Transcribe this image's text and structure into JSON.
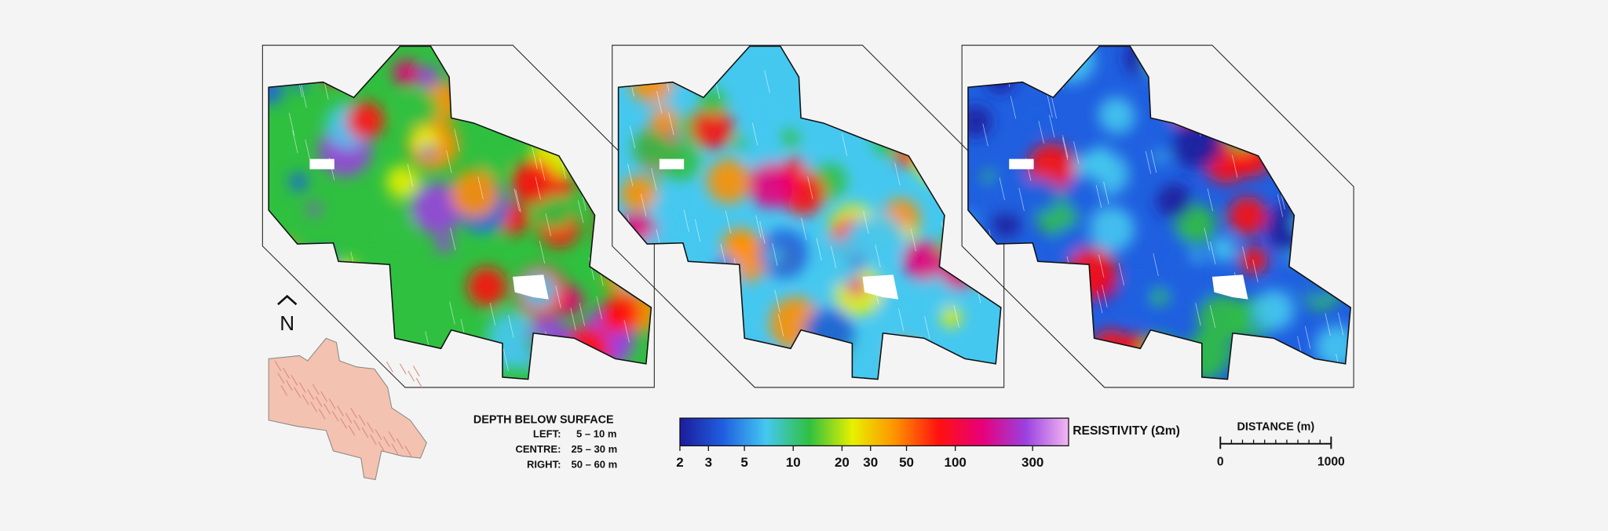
{
  "maps": {
    "panels": [
      "left",
      "centre",
      "right"
    ]
  },
  "north_arrow": {
    "label": "N"
  },
  "depth_legend": {
    "title": "DEPTH BELOW SURFACE",
    "rows": [
      [
        "LEFT:",
        "5 – 10 m"
      ],
      [
        "CENTRE:",
        "25 – 30 m"
      ],
      [
        "RIGHT:",
        "50 – 60 m"
      ]
    ]
  },
  "colorbar": {
    "title": "RESISTIVITY (Ωm)",
    "log": true,
    "lim": [
      2,
      500
    ],
    "ticks": [
      2,
      3,
      5,
      10,
      20,
      30,
      50,
      100,
      300
    ],
    "colors": [
      "#1c1c9c",
      "#1f5fe0",
      "#45c8f0",
      "#30c040",
      "#e8f000",
      "#ff9000",
      "#ff1010",
      "#e8007a",
      "#9a40e0",
      "#f2b8f2"
    ]
  },
  "scale_bar": {
    "title": "DISTANCE (m)",
    "lim": [
      0,
      1000
    ],
    "ticks": [
      0,
      1000
    ]
  }
}
